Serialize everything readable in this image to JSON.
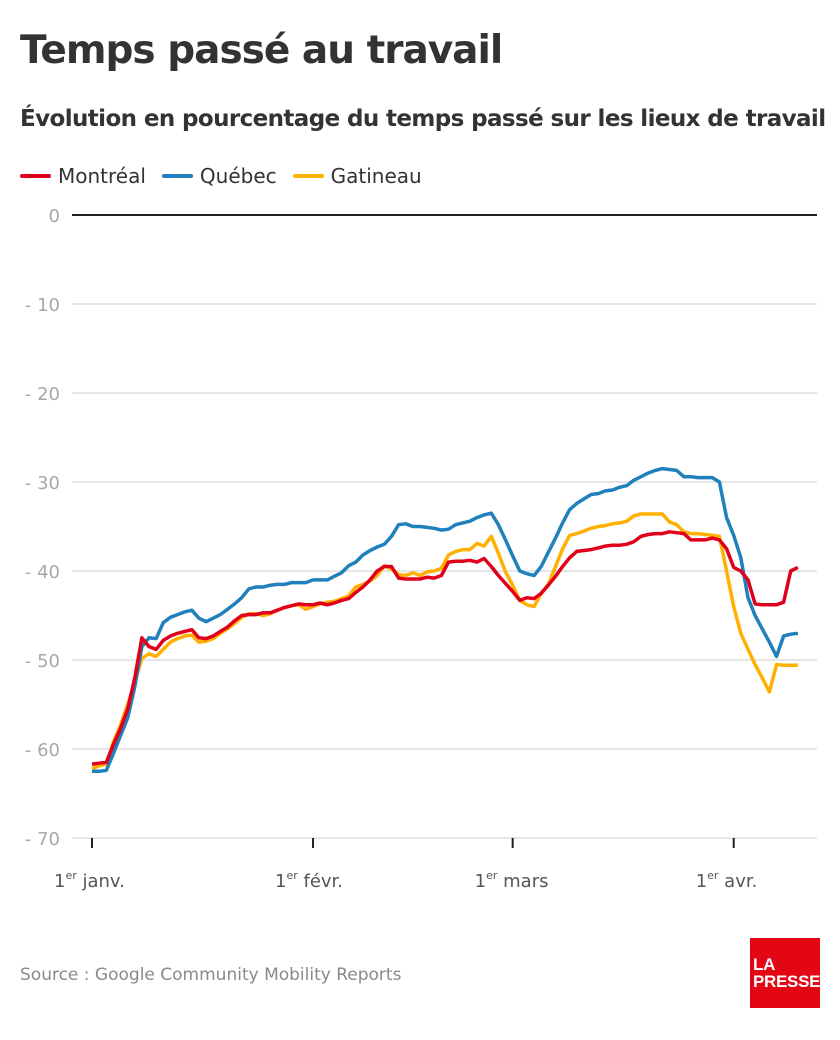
{
  "header": {
    "title": "Temps passé au travail",
    "subtitle": "Évolution en pourcentage du temps passé sur les lieux de travail"
  },
  "footer": {
    "source": "Source : Google Community Mobility Reports",
    "logo_line1": "LA",
    "logo_line2": "PRESSE"
  },
  "chart_data": {
    "type": "line",
    "title": "Temps passé au travail",
    "subtitle": "Évolution en pourcentage du temps passé sur les lieux de travail",
    "xlabel": "",
    "ylabel": "",
    "ylim": [
      -70,
      0
    ],
    "yticks": [
      0,
      -10,
      -20,
      -30,
      -40,
      -50,
      -60,
      -70
    ],
    "ytick_labels": [
      "0",
      "- 10",
      "- 20",
      "- 30",
      "- 40",
      "- 50",
      "- 60",
      "- 70"
    ],
    "x_start": "1er janv.",
    "x_end": "10 avr.",
    "x_unit": "day index from 1er janv.",
    "xticks": [
      {
        "day": 0,
        "main": "1",
        "sup": "er",
        "rest": " janv."
      },
      {
        "day": 31,
        "main": "1",
        "sup": "er",
        "rest": " févr."
      },
      {
        "day": 59,
        "main": "1",
        "sup": "er",
        "rest": " mars"
      },
      {
        "day": 90,
        "main": "1",
        "sup": "er",
        "rest": " avr."
      }
    ],
    "grid": true,
    "legend_position": "top-left",
    "series": [
      {
        "name": "Montréal",
        "color": "#e0001b",
        "values": [
          -61.7,
          -61.6,
          -61.5,
          -59.5,
          -57.7,
          -55.5,
          -52.0,
          -47.5,
          -48.5,
          -48.8,
          -47.8,
          -47.3,
          -47.0,
          -46.8,
          -46.6,
          -47.5,
          -47.6,
          -47.3,
          -46.8,
          -46.3,
          -45.6,
          -45.0,
          -44.9,
          -44.9,
          -44.7,
          -44.7,
          -44.4,
          -44.1,
          -43.9,
          -43.7,
          -43.8,
          -43.8,
          -43.6,
          -43.8,
          -43.6,
          -43.3,
          -43.1,
          -42.4,
          -41.8,
          -41.0,
          -40.0,
          -39.5,
          -39.5,
          -40.8,
          -40.9,
          -40.9,
          -40.9,
          -40.7,
          -40.8,
          -40.5,
          -39.0,
          -38.9,
          -38.9,
          -38.8,
          -39.0,
          -38.6,
          -39.5,
          -40.5,
          -41.4,
          -42.3,
          -43.3,
          -43.0,
          -43.1,
          -42.5,
          -41.6,
          -40.6,
          -39.5,
          -38.5,
          -37.8,
          -37.7,
          -37.6,
          -37.4,
          -37.2,
          -37.1,
          -37.1,
          -37.0,
          -36.7,
          -36.1,
          -35.9,
          -35.8,
          -35.8,
          -35.6,
          -35.7,
          -35.8,
          -36.5,
          -36.5,
          -36.5,
          -36.3,
          -36.5,
          -37.5,
          -39.6,
          -40.0,
          -41.0,
          -43.7,
          -43.8,
          -43.8,
          -43.8,
          -43.5,
          -40.0,
          -39.6
        ]
      },
      {
        "name": "Québec",
        "color": "#2080bc",
        "values": [
          -62.5,
          -62.5,
          -62.4,
          -60.5,
          -58.5,
          -56.5,
          -53.0,
          -48.5,
          -47.5,
          -47.6,
          -45.8,
          -45.2,
          -44.9,
          -44.6,
          -44.4,
          -45.3,
          -45.7,
          -45.3,
          -44.9,
          -44.3,
          -43.7,
          -43.0,
          -42.0,
          -41.8,
          -41.8,
          -41.6,
          -41.5,
          -41.5,
          -41.3,
          -41.3,
          -41.3,
          -41.0,
          -41.0,
          -41.0,
          -40.6,
          -40.2,
          -39.4,
          -39.0,
          -38.2,
          -37.7,
          -37.3,
          -37.0,
          -36.1,
          -34.8,
          -34.7,
          -35.0,
          -35.0,
          -35.1,
          -35.2,
          -35.4,
          -35.3,
          -34.8,
          -34.6,
          -34.4,
          -34.0,
          -33.7,
          -33.5,
          -34.8,
          -36.5,
          -38.3,
          -40.0,
          -40.3,
          -40.5,
          -39.5,
          -37.9,
          -36.3,
          -34.6,
          -33.1,
          -32.4,
          -31.9,
          -31.4,
          -31.3,
          -31.0,
          -30.9,
          -30.6,
          -30.4,
          -29.8,
          -29.4,
          -29.0,
          -28.7,
          -28.5,
          -28.6,
          -28.7,
          -29.4,
          -29.4,
          -29.5,
          -29.5,
          -29.5,
          -30.0,
          -34.0,
          -36.0,
          -38.5,
          -43.0,
          -45.0,
          -46.5,
          -48.0,
          -49.6,
          -47.3,
          -47.1,
          -47.0
        ]
      },
      {
        "name": "Gatineau",
        "color": "#ffb000",
        "values": [
          -62.2,
          -61.9,
          -61.7,
          -59.2,
          -57.3,
          -55.0,
          -52.5,
          -49.8,
          -49.3,
          -49.6,
          -48.8,
          -48.0,
          -47.6,
          -47.3,
          -47.2,
          -48.0,
          -47.9,
          -47.6,
          -47.0,
          -46.5,
          -45.9,
          -45.2,
          -44.8,
          -44.8,
          -45.0,
          -44.8,
          -44.4,
          -44.1,
          -43.9,
          -43.8,
          -44.3,
          -44.0,
          -43.7,
          -43.5,
          -43.4,
          -43.1,
          -42.8,
          -41.8,
          -41.5,
          -41.1,
          -40.5,
          -39.4,
          -39.8,
          -40.4,
          -40.5,
          -40.2,
          -40.5,
          -40.1,
          -40.0,
          -39.7,
          -38.2,
          -37.8,
          -37.6,
          -37.6,
          -36.9,
          -37.2,
          -36.1,
          -38.0,
          -40.1,
          -41.6,
          -43.3,
          -43.8,
          -44.0,
          -42.5,
          -41.5,
          -39.5,
          -37.5,
          -36.0,
          -35.8,
          -35.5,
          -35.2,
          -35.0,
          -34.9,
          -34.7,
          -34.6,
          -34.4,
          -33.8,
          -33.6,
          -33.6,
          -33.6,
          -33.6,
          -34.5,
          -34.8,
          -35.6,
          -35.8,
          -35.8,
          -35.9,
          -36.0,
          -36.1,
          -40.0,
          -44.0,
          -47.0,
          -48.8,
          -50.5,
          -52.0,
          -53.6,
          -50.5,
          -50.6,
          -50.6,
          -50.6
        ]
      }
    ]
  }
}
